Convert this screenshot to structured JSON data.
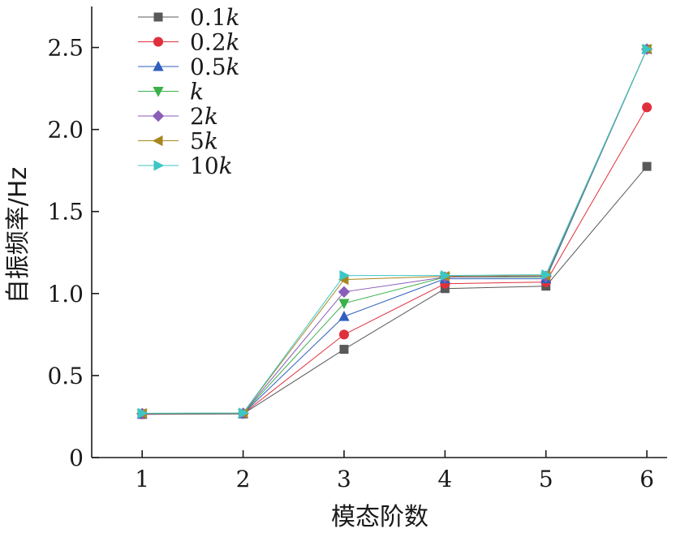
{
  "chart_data": {
    "type": "line",
    "xlabel": "模态阶数",
    "ylabel": "自振频率/Hz",
    "xlim": [
      0.5,
      6.2
    ],
    "ylim": [
      0,
      2.75
    ],
    "x": [
      1,
      2,
      3,
      4,
      5,
      6
    ],
    "x_ticks": [
      "1",
      "2",
      "3",
      "4",
      "5",
      "6"
    ],
    "y_ticks": [
      0,
      0.5,
      1.0,
      1.5,
      2.0,
      2.5
    ],
    "y_tick_labels": [
      "0",
      "0.5",
      "1.0",
      "1.5",
      "2.0",
      "2.5"
    ],
    "grid": false,
    "legend_position": "top-left",
    "series": [
      {
        "name": "0.1k",
        "name_num": "0.1",
        "name_var": "k",
        "color": "#595959",
        "marker": "square",
        "values": [
          0.263,
          0.266,
          0.66,
          1.03,
          1.045,
          1.775
        ]
      },
      {
        "name": "0.2k",
        "name_num": "0.2",
        "name_var": "k",
        "color": "#e0303c",
        "marker": "circle",
        "values": [
          0.264,
          0.267,
          0.75,
          1.06,
          1.07,
          2.135
        ]
      },
      {
        "name": "0.5k",
        "name_num": "0.5",
        "name_var": "k",
        "color": "#2f5fbf",
        "marker": "triangle-up",
        "values": [
          0.266,
          0.268,
          0.86,
          1.09,
          1.09,
          2.49
        ]
      },
      {
        "name": "k",
        "name_num": "",
        "name_var": "k",
        "color": "#3cb04a",
        "marker": "triangle-down",
        "values": [
          0.267,
          0.269,
          0.94,
          1.1,
          1.1,
          2.49
        ]
      },
      {
        "name": "2k",
        "name_num": "2",
        "name_var": "k",
        "color": "#8a5db8",
        "marker": "diamond",
        "values": [
          0.268,
          0.27,
          1.01,
          1.1,
          1.105,
          2.49
        ]
      },
      {
        "name": "5k",
        "name_num": "5",
        "name_var": "k",
        "color": "#a8861f",
        "marker": "triangle-left",
        "values": [
          0.269,
          0.271,
          1.085,
          1.105,
          1.11,
          2.49
        ]
      },
      {
        "name": "10k",
        "name_num": "10",
        "name_var": "k",
        "color": "#3cc6c6",
        "marker": "triangle-right",
        "values": [
          0.27,
          0.272,
          1.11,
          1.11,
          1.115,
          2.49
        ]
      }
    ]
  }
}
